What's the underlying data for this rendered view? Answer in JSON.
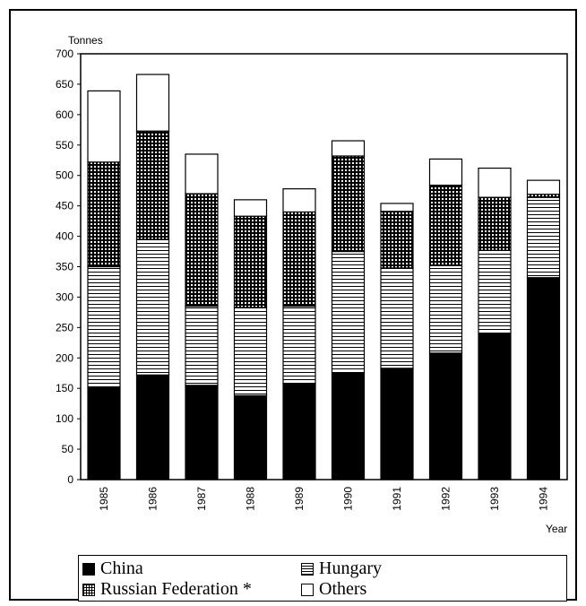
{
  "chart_data": {
    "type": "bar",
    "stacked": true,
    "y_unit_label": "Tonnes",
    "xlabel": "Year",
    "ylim": [
      0,
      700
    ],
    "y_ticks": [
      "0",
      "50",
      "100",
      "150",
      "200",
      "250",
      "300",
      "350",
      "400",
      "450",
      "500",
      "550",
      "600",
      "650",
      "700"
    ],
    "categories": [
      "1985",
      "1986",
      "1987",
      "1988",
      "1989",
      "1990",
      "1991",
      "1992",
      "1993",
      "1994"
    ],
    "series": [
      {
        "name": "China",
        "fill": "solid",
        "values": [
          152,
          172,
          155,
          138,
          158,
          175,
          183,
          208,
          240,
          332
        ]
      },
      {
        "name": "Hungary",
        "fill": "horizontal-lines",
        "values": [
          198,
          223,
          130,
          145,
          127,
          200,
          165,
          144,
          137,
          132
        ]
      },
      {
        "name": "Russian Federation *",
        "fill": "grid",
        "values": [
          172,
          178,
          185,
          150,
          155,
          157,
          93,
          132,
          87,
          5
        ]
      },
      {
        "name": "Others",
        "fill": "empty",
        "values": [
          117,
          93,
          65,
          27,
          38,
          25,
          13,
          43,
          48,
          23
        ]
      }
    ],
    "grid": false,
    "legend_position": "bottom"
  },
  "legend": {
    "items": [
      {
        "label": "China",
        "icon": "solid-square-icon"
      },
      {
        "label": "Hungary",
        "icon": "lined-square-icon"
      },
      {
        "label": "Russian Federation *",
        "icon": "grid-square-icon"
      },
      {
        "label": "Others",
        "icon": "empty-square-icon"
      }
    ]
  },
  "colors": {
    "ink": "#000000",
    "paper": "#ffffff"
  }
}
